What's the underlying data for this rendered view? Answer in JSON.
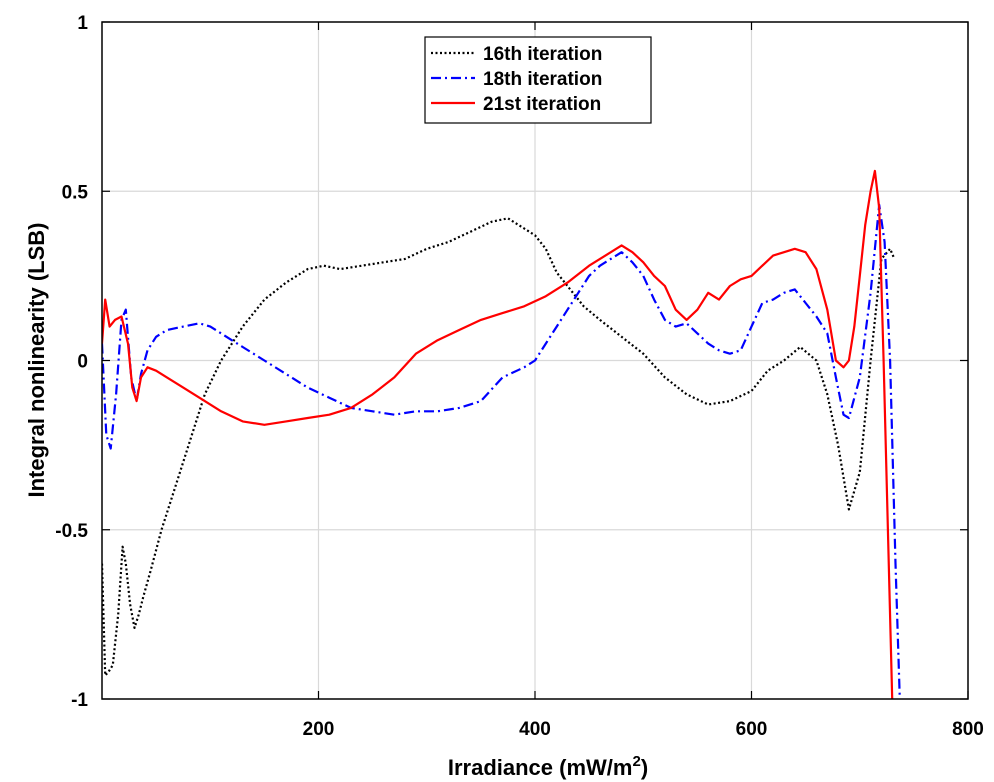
{
  "chart_data": {
    "type": "line",
    "title": "",
    "xlabel": "Irradiance (mW/m",
    "xlabel_sup": "2",
    "xlabel_end": ")",
    "ylabel": "Integral nonlinearity (LSB)",
    "xlim": [
      0,
      800
    ],
    "ylim": [
      -1,
      1
    ],
    "xticks": [
      200,
      400,
      600,
      800
    ],
    "xtick_labels": [
      "200",
      "400",
      "600",
      "800"
    ],
    "yticks": [
      -1,
      -0.5,
      0,
      0.5,
      1
    ],
    "ytick_labels": [
      "-1",
      "-0.5",
      "0",
      "0.5",
      "1"
    ],
    "grid": true,
    "legend_position": "top-center",
    "series": [
      {
        "name": "16th iteration",
        "color": "#000000",
        "style": "dotted",
        "x": [
          0,
          3,
          6,
          10,
          15,
          19,
          22,
          26,
          30,
          34,
          38,
          45,
          55,
          65,
          75,
          85,
          95,
          110,
          130,
          150,
          170,
          190,
          205,
          220,
          240,
          260,
          280,
          300,
          320,
          340,
          360,
          375,
          390,
          400,
          410,
          420,
          430,
          445,
          460,
          480,
          500,
          520,
          540,
          560,
          580,
          600,
          615,
          630,
          645,
          660,
          670,
          680,
          690,
          700,
          710,
          720,
          728,
          732
        ],
        "y": [
          -0.6,
          -0.93,
          -0.92,
          -0.9,
          -0.75,
          -0.55,
          -0.6,
          -0.72,
          -0.79,
          -0.75,
          -0.7,
          -0.62,
          -0.5,
          -0.4,
          -0.3,
          -0.2,
          -0.1,
          0.0,
          0.1,
          0.18,
          0.23,
          0.27,
          0.28,
          0.27,
          0.28,
          0.29,
          0.3,
          0.33,
          0.35,
          0.38,
          0.41,
          0.42,
          0.39,
          0.37,
          0.33,
          0.26,
          0.22,
          0.16,
          0.12,
          0.07,
          0.02,
          -0.05,
          -0.1,
          -0.13,
          -0.12,
          -0.09,
          -0.03,
          0.0,
          0.04,
          0.0,
          -0.1,
          -0.25,
          -0.44,
          -0.33,
          0.0,
          0.3,
          0.33,
          0.3
        ]
      },
      {
        "name": "18th iteration",
        "color": "#0000ff",
        "style": "dashdot",
        "x": [
          0,
          4,
          8,
          13,
          18,
          22,
          27,
          32,
          36,
          42,
          50,
          60,
          75,
          90,
          100,
          110,
          130,
          150,
          170,
          190,
          210,
          230,
          250,
          270,
          290,
          310,
          330,
          350,
          370,
          390,
          400,
          410,
          420,
          430,
          440,
          450,
          460,
          470,
          480,
          490,
          500,
          510,
          520,
          530,
          540,
          550,
          560,
          570,
          580,
          590,
          600,
          610,
          620,
          630,
          640,
          650,
          660,
          670,
          678,
          685,
          690,
          700,
          710,
          718,
          723,
          728,
          733,
          737
        ],
        "y": [
          0.05,
          -0.22,
          -0.26,
          -0.1,
          0.12,
          0.15,
          -0.05,
          -0.12,
          -0.04,
          0.03,
          0.07,
          0.09,
          0.1,
          0.11,
          0.1,
          0.08,
          0.04,
          0.0,
          -0.04,
          -0.08,
          -0.11,
          -0.14,
          -0.15,
          -0.16,
          -0.15,
          -0.15,
          -0.14,
          -0.12,
          -0.05,
          -0.02,
          0.0,
          0.05,
          0.1,
          0.15,
          0.2,
          0.25,
          0.28,
          0.3,
          0.32,
          0.29,
          0.25,
          0.18,
          0.12,
          0.1,
          0.11,
          0.08,
          0.05,
          0.03,
          0.02,
          0.03,
          0.1,
          0.17,
          0.18,
          0.2,
          0.21,
          0.17,
          0.13,
          0.08,
          -0.05,
          -0.16,
          -0.17,
          -0.05,
          0.2,
          0.46,
          0.35,
          0.0,
          -0.6,
          -1.0
        ]
      },
      {
        "name": "21st iteration",
        "color": "#ff0000",
        "style": "solid",
        "x": [
          0,
          3,
          7,
          12,
          18,
          24,
          28,
          32,
          36,
          42,
          50,
          60,
          75,
          90,
          110,
          130,
          150,
          170,
          190,
          210,
          230,
          250,
          270,
          290,
          310,
          330,
          350,
          370,
          390,
          410,
          430,
          450,
          470,
          480,
          490,
          500,
          510,
          520,
          530,
          540,
          550,
          560,
          570,
          580,
          590,
          600,
          610,
          620,
          630,
          640,
          650,
          660,
          670,
          678,
          685,
          690,
          695,
          700,
          705,
          710,
          714,
          718,
          722,
          726,
          730
        ],
        "y": [
          0.05,
          0.18,
          0.1,
          0.12,
          0.13,
          0.05,
          -0.08,
          -0.12,
          -0.05,
          -0.02,
          -0.03,
          -0.05,
          -0.08,
          -0.11,
          -0.15,
          -0.18,
          -0.19,
          -0.18,
          -0.17,
          -0.16,
          -0.14,
          -0.1,
          -0.05,
          0.02,
          0.06,
          0.09,
          0.12,
          0.14,
          0.16,
          0.19,
          0.23,
          0.28,
          0.32,
          0.34,
          0.32,
          0.29,
          0.25,
          0.22,
          0.15,
          0.12,
          0.15,
          0.2,
          0.18,
          0.22,
          0.24,
          0.25,
          0.28,
          0.31,
          0.32,
          0.33,
          0.32,
          0.27,
          0.15,
          0.0,
          -0.02,
          0.0,
          0.1,
          0.25,
          0.4,
          0.5,
          0.56,
          0.45,
          0.0,
          -0.5,
          -1.0
        ]
      }
    ]
  }
}
